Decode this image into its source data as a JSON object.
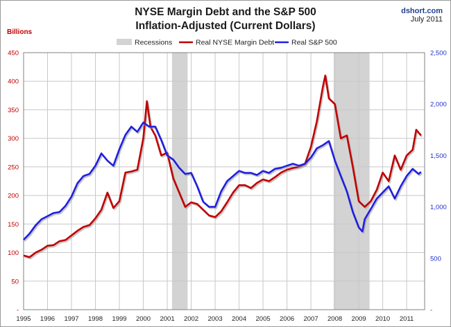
{
  "header": {
    "title_line1": "NYSE Margin Debt and the S&P 500",
    "title_line2": "Inflation-Adjusted (Current Dollars)",
    "source": "dshort.com",
    "date": "July 2011",
    "left_unit": "Billions"
  },
  "colors": {
    "margin_debt": "#c00000",
    "sp500": "#1f1fe0",
    "recession": "#d3d3d3",
    "grid": "#c8c8c8",
    "left_axis": "#c00000",
    "right_axis": "#1f30d0"
  },
  "chart_data": {
    "type": "line",
    "xlim": [
      1995.0,
      2011.75
    ],
    "x_ticks": [
      "1995",
      "1996",
      "1997",
      "1998",
      "1999",
      "2000",
      "2001",
      "2002",
      "2003",
      "2004",
      "2005",
      "2006",
      "2007",
      "2008",
      "2009",
      "2010",
      "2011"
    ],
    "y_left": {
      "label": "Billions",
      "lim": [
        0,
        450
      ],
      "ticks": [
        0,
        50,
        100,
        150,
        200,
        250,
        300,
        350,
        400,
        450
      ],
      "tick_labels": [
        "-",
        "50",
        "100",
        "150",
        "200",
        "250",
        "300",
        "350",
        "400",
        "450"
      ]
    },
    "y_right": {
      "lim": [
        0,
        2500
      ],
      "ticks": [
        0,
        500,
        1000,
        1500,
        2000,
        2500
      ],
      "tick_labels": [
        "-",
        "500",
        "1,000",
        "1,500",
        "2,000",
        "2,500"
      ]
    },
    "grid": true,
    "legend_position": "top-center",
    "recessions": [
      {
        "name": "Recessions",
        "start": 2001.2,
        "end": 2001.85
      },
      {
        "name": "Recessions",
        "start": 2007.95,
        "end": 2009.45
      }
    ],
    "series": [
      {
        "name": "Real NYSE Margin Debt",
        "axis": "left",
        "color": "#c00000",
        "x": [
          1995.0,
          1995.25,
          1995.5,
          1995.75,
          1996.0,
          1996.25,
          1996.5,
          1996.75,
          1997.0,
          1997.25,
          1997.5,
          1997.75,
          1998.0,
          1998.25,
          1998.5,
          1998.75,
          1999.0,
          1999.25,
          1999.5,
          1999.75,
          2000.0,
          2000.15,
          2000.3,
          2000.5,
          2000.75,
          2001.0,
          2001.25,
          2001.5,
          2001.75,
          2002.0,
          2002.25,
          2002.5,
          2002.75,
          2003.0,
          2003.25,
          2003.5,
          2003.75,
          2004.0,
          2004.25,
          2004.5,
          2004.75,
          2005.0,
          2005.25,
          2005.5,
          2005.75,
          2006.0,
          2006.25,
          2006.5,
          2006.75,
          2007.0,
          2007.25,
          2007.5,
          2007.6,
          2007.75,
          2008.0,
          2008.25,
          2008.5,
          2008.75,
          2009.0,
          2009.25,
          2009.5,
          2009.75,
          2010.0,
          2010.25,
          2010.5,
          2010.75,
          2011.0,
          2011.25,
          2011.4,
          2011.6
        ],
        "values": [
          95,
          92,
          100,
          105,
          112,
          113,
          120,
          122,
          130,
          138,
          145,
          148,
          160,
          175,
          205,
          178,
          190,
          240,
          242,
          245,
          300,
          365,
          320,
          305,
          270,
          275,
          230,
          205,
          180,
          188,
          185,
          175,
          165,
          162,
          172,
          188,
          205,
          218,
          218,
          213,
          222,
          228,
          225,
          232,
          240,
          245,
          248,
          250,
          255,
          285,
          330,
          390,
          410,
          370,
          360,
          300,
          305,
          250,
          190,
          180,
          190,
          210,
          240,
          225,
          270,
          245,
          270,
          280,
          315,
          305
        ]
      },
      {
        "name": "Real S&P 500",
        "axis": "right",
        "color": "#1f1fe0",
        "x": [
          1995.0,
          1995.25,
          1995.5,
          1995.75,
          1996.0,
          1996.25,
          1996.5,
          1996.75,
          1997.0,
          1997.25,
          1997.5,
          1997.75,
          1998.0,
          1998.25,
          1998.5,
          1998.75,
          1999.0,
          1999.25,
          1999.5,
          1999.75,
          2000.0,
          2000.25,
          2000.5,
          2000.75,
          2001.0,
          2001.25,
          2001.5,
          2001.75,
          2002.0,
          2002.25,
          2002.5,
          2002.75,
          2003.0,
          2003.25,
          2003.5,
          2003.75,
          2004.0,
          2004.25,
          2004.5,
          2004.75,
          2005.0,
          2005.25,
          2005.5,
          2005.75,
          2006.0,
          2006.25,
          2006.5,
          2006.75,
          2007.0,
          2007.25,
          2007.5,
          2007.75,
          2008.0,
          2008.25,
          2008.5,
          2008.75,
          2009.0,
          2009.15,
          2009.25,
          2009.5,
          2009.75,
          2010.0,
          2010.25,
          2010.5,
          2010.75,
          2011.0,
          2011.25,
          2011.5,
          2011.6
        ],
        "values": [
          680,
          740,
          820,
          880,
          910,
          940,
          950,
          1010,
          1100,
          1230,
          1300,
          1320,
          1400,
          1520,
          1450,
          1400,
          1560,
          1700,
          1780,
          1730,
          1820,
          1780,
          1780,
          1650,
          1500,
          1460,
          1380,
          1320,
          1330,
          1200,
          1050,
          1000,
          1000,
          1150,
          1250,
          1300,
          1350,
          1330,
          1330,
          1310,
          1350,
          1330,
          1370,
          1380,
          1400,
          1420,
          1400,
          1420,
          1480,
          1570,
          1600,
          1640,
          1450,
          1300,
          1150,
          950,
          800,
          760,
          880,
          980,
          1080,
          1140,
          1200,
          1080,
          1200,
          1300,
          1370,
          1320,
          1340
        ]
      }
    ]
  }
}
